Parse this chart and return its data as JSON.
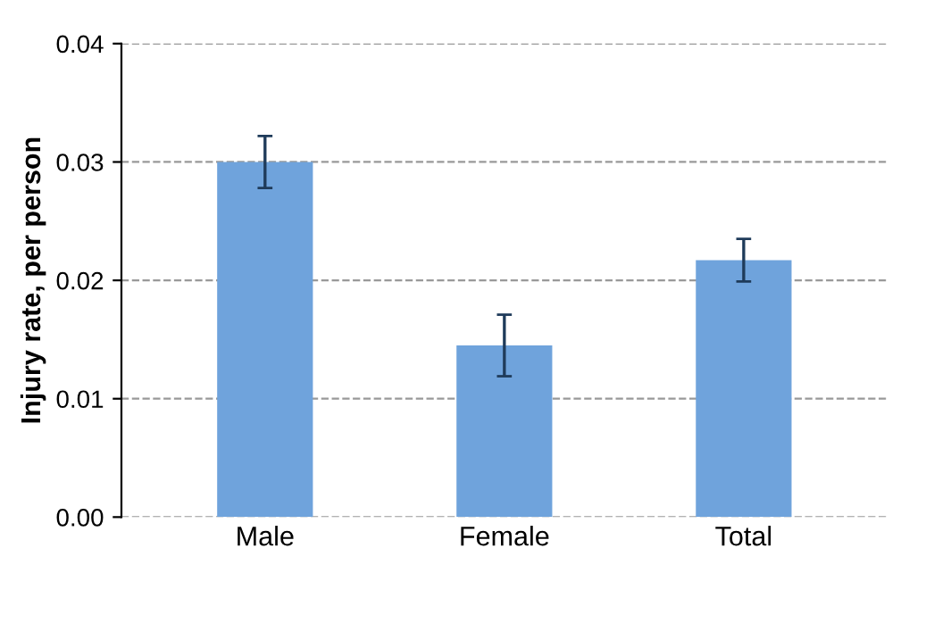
{
  "chart_data": {
    "type": "bar",
    "ylabel": "Injury rate, per person",
    "categories": [
      "Male",
      "Female",
      "Total"
    ],
    "values": [
      0.03,
      0.0145,
      0.0217
    ],
    "errors": [
      0.0022,
      0.0026,
      0.0018
    ],
    "color": "#6fa3dc",
    "ylim": [
      0,
      0.04
    ],
    "yticks": [
      {
        "value": 0,
        "label": "0.00"
      },
      {
        "value": 0.01,
        "label": "0.01"
      },
      {
        "value": 0.02,
        "label": "0.02"
      },
      {
        "value": 0.03,
        "label": "0.03"
      },
      {
        "value": 0.04,
        "label": "0.04"
      }
    ],
    "grid": "y"
  }
}
